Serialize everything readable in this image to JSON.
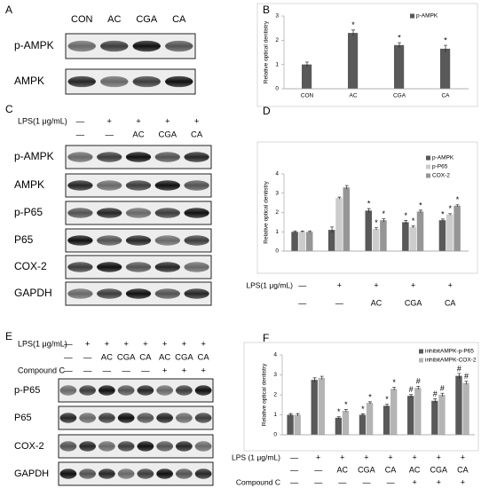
{
  "blots": [
    {
      "panel": "A",
      "header_rows": [
        {
          "values": [
            "CON",
            "AC",
            "CGA",
            "CA"
          ]
        }
      ],
      "rows": [
        "p-AMPK",
        "AMPK"
      ]
    },
    {
      "panel": "C",
      "header_rows": [
        {
          "label": "LPS(1 μg/mL)",
          "values": [
            "—",
            "+",
            "+",
            "+",
            "+"
          ]
        },
        {
          "values": [
            "—",
            "—",
            "AC",
            "CGA",
            "CA"
          ]
        }
      ],
      "rows": [
        "p-AMPK",
        "AMPK",
        "p-P65",
        "P65",
        "COX-2",
        "GAPDH"
      ]
    },
    {
      "panel": "E",
      "header_rows": [
        {
          "label": "LPS(1 μg/mL)",
          "values": [
            "—",
            "+",
            "+",
            "+",
            "+",
            "+",
            "+",
            "+"
          ]
        },
        {
          "values": [
            "—",
            "—",
            "AC",
            "CGA",
            "CA",
            "AC",
            "CGA",
            "CA"
          ]
        },
        {
          "label": "Compound C",
          "values": [
            "—",
            "—",
            "—",
            "—",
            "—",
            "+",
            "+",
            "+"
          ]
        }
      ],
      "rows": [
        "p-P65",
        "P65",
        "COX-2",
        "GAPDH"
      ]
    }
  ],
  "chart_data": [
    {
      "type": "bar",
      "panel": "B",
      "y_label": "Relative optical dentistry",
      "categories": [
        "CON",
        "AC",
        "CGA",
        "CA"
      ],
      "series": [
        {
          "name": "p-AMPK",
          "color": "#595959",
          "values": [
            1.0,
            2.3,
            1.8,
            1.65
          ],
          "errors": [
            0.1,
            0.12,
            0.1,
            0.14
          ],
          "markers": [
            null,
            "*",
            "*",
            "*"
          ]
        }
      ],
      "ylim": [
        0,
        3
      ],
      "yticks": [
        0,
        1,
        2,
        3
      ],
      "grid": false
    },
    {
      "type": "bar",
      "panel": "D",
      "y_label": "Relative optical dentistry",
      "rows_above": [
        {
          "label": "LPS(1 μg/mL)",
          "values": [
            "—",
            "+",
            "+",
            "+",
            "+"
          ]
        }
      ],
      "categories": [
        "—",
        "—",
        "AC",
        "CGA",
        "CA"
      ],
      "series": [
        {
          "name": "p-AMPK",
          "color": "#595959",
          "values": [
            1.0,
            1.1,
            2.1,
            1.5,
            1.6
          ],
          "errors": [
            0.05,
            0.15,
            0.1,
            0.08,
            0.06
          ],
          "markers": [
            null,
            null,
            "*",
            "*",
            "*"
          ]
        },
        {
          "name": "p-P65",
          "color": "#cccccc",
          "values": [
            1.0,
            2.75,
            1.15,
            1.25,
            1.9
          ],
          "errors": [
            0.04,
            0.05,
            0.06,
            0.05,
            0.04
          ],
          "markers": [
            null,
            null,
            "*",
            "*",
            "*"
          ]
        },
        {
          "name": "COX-2",
          "color": "#969696",
          "values": [
            1.0,
            3.3,
            1.6,
            2.05,
            2.35
          ],
          "errors": [
            0.05,
            0.1,
            0.08,
            0.07,
            0.05
          ],
          "markers": [
            null,
            null,
            "*",
            "*",
            "*"
          ]
        }
      ],
      "ylim": [
        0,
        4
      ],
      "yticks": [
        0,
        1,
        2,
        3,
        4
      ],
      "grid": false
    },
    {
      "type": "bar",
      "panel": "F",
      "y_label": "Relative optical dentistry",
      "rows_above": [
        {
          "label": "LPS  (1 μg/mL)",
          "values": [
            "—",
            "+",
            "+",
            "+",
            "+",
            "+",
            "+",
            "+"
          ]
        }
      ],
      "categories": [
        "—",
        "—",
        "AC",
        "CGA",
        "CA",
        "AC",
        "CGA",
        "CA"
      ],
      "rows_below": [
        {
          "label": "Compound C",
          "values": [
            "—",
            "—",
            "—",
            "—",
            "—",
            "+",
            "+",
            "+"
          ]
        }
      ],
      "series": [
        {
          "name": "inhibitAMPK-p-P65",
          "color": "#595959",
          "values": [
            1.0,
            2.75,
            0.85,
            1.0,
            1.45,
            1.95,
            1.7,
            2.95
          ],
          "errors": [
            0.06,
            0.1,
            0.05,
            0.05,
            0.08,
            0.06,
            0.1,
            0.12
          ],
          "markers": [
            null,
            null,
            "*",
            "*",
            "*",
            "#",
            "#",
            "#"
          ]
        },
        {
          "name": "inhibitAMPK-COX-2",
          "color": "#b4b4b4",
          "values": [
            1.0,
            2.85,
            1.2,
            1.6,
            2.3,
            2.35,
            2.0,
            2.6
          ],
          "errors": [
            0.06,
            0.08,
            0.06,
            0.05,
            0.08,
            0.08,
            0.08,
            0.08
          ],
          "markers": [
            null,
            null,
            "*",
            "*",
            "*",
            "#",
            "#",
            "#"
          ]
        }
      ],
      "ylim": [
        0,
        4
      ],
      "yticks": [
        0,
        1,
        2,
        3,
        4
      ],
      "grid": false
    }
  ]
}
